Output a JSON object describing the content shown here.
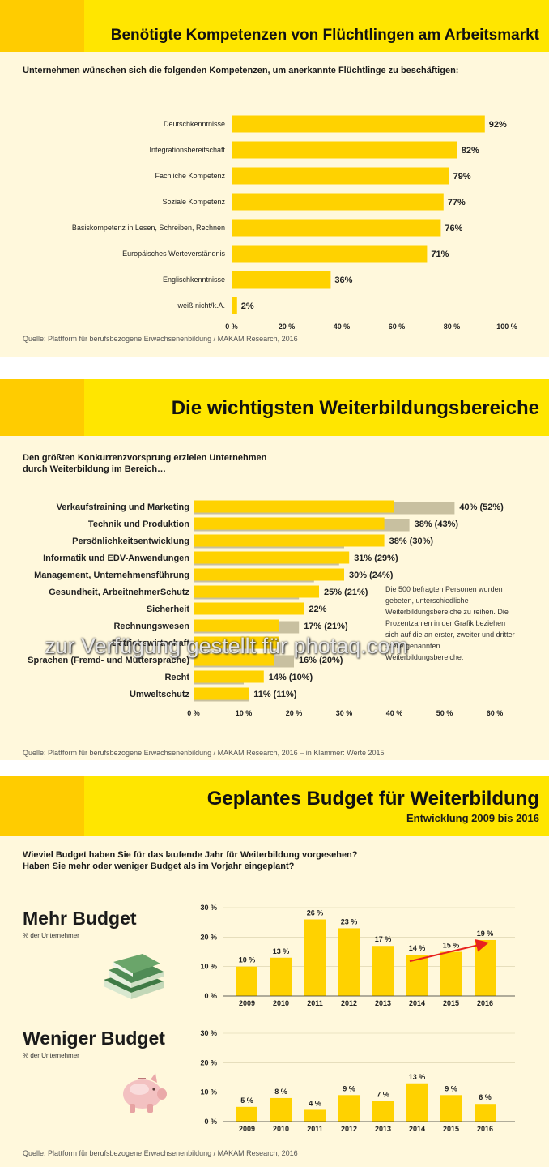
{
  "panel1": {
    "title": "Benötigte Kompetenzen von Flüchtlingen am Arbeitsmarkt",
    "intro": "Unternehmen wünschen sich die folgenden Kompetenzen, um anerkannte Flüchtlinge zu beschäftigen:",
    "source": "Quelle: Plattform für berufsbezogene Erwachsenenbildung / MAKAM Research, 2016"
  },
  "panel2": {
    "title": "Die wichtigsten Weiterbildungsbereiche",
    "intro_line1": "Den größten Konkurrenzvorsprung erzielen Unternehmen",
    "intro_line2": "durch Weiterbildung im Bereich…",
    "note": "Die 500 befragten Personen wurden gebeten, unterschiedliche Weiterbildungsbereiche zu reihen. Die Prozentzahlen in der Grafik beziehen sich auf die an erster, zweiter und dritter Stelle genannten Weiterbildungsbereiche.",
    "source": "Quelle: Plattform für berufsbezogene Erwachsenenbildung / MAKAM Research, 2016 – in Klammer: Werte 2015"
  },
  "panel3": {
    "title": "Geplantes Budget für Weiterbildung",
    "subtitle": "Entwicklung 2009 bis 2016",
    "intro_line1": "Wieviel Budget haben Sie für das laufende Jahr für Weiterbildung vorgesehen?",
    "intro_line2": "Haben Sie mehr oder weniger Budget als im Vorjahr eingeplant?",
    "more_title": "Mehr Budget",
    "more_sub": "% der Unternehmer",
    "less_title": "Weniger Budget",
    "less_sub": "% der Unternehmer",
    "source": "Quelle: Plattform für berufsbezogene Erwachsenenbildung / MAKAM Research, 2016"
  },
  "watermark": "zur Verfügung gestellt für photaq.com",
  "colors": {
    "bar": "#ffd200",
    "bar_2015": "#c8c0a0",
    "band": "#ffe600",
    "band_tab": "#ffcc00",
    "arrow": "#e8231e"
  },
  "chart_data": [
    {
      "type": "bar",
      "orientation": "horizontal",
      "categories": [
        "Deutschkenntnisse",
        "Integrationsbereitschaft",
        "Fachliche Kompetenz",
        "Soziale Kompetenz",
        "Basiskompetenz in Lesen, Schreiben, Rechnen",
        "Europäisches Werteverständnis",
        "Englischkenntnisse",
        "weiß nicht/k.A."
      ],
      "values": [
        92,
        82,
        79,
        77,
        76,
        71,
        36,
        2
      ],
      "value_labels": [
        "92%",
        "82%",
        "79%",
        "77%",
        "76%",
        "71%",
        "36%",
        "2%"
      ],
      "xlim": [
        0,
        100
      ],
      "ticks": [
        "0 %",
        "20 %",
        "40 %",
        "60 %",
        "80 %",
        "100 %"
      ]
    },
    {
      "type": "bar",
      "orientation": "horizontal",
      "categories": [
        "Verkaufstraining und Marketing",
        "Technik und Produktion",
        "Persönlichkeitsentwicklung",
        "Informatik und EDV-Anwendungen",
        "Management, Unternehmensführung",
        "Gesundheit, ArbeitnehmerSchutz",
        "Sicherheit",
        "Rechnungswesen",
        "Betriebswirtschaft",
        "Sprachen (Fremd- und Muttersprache)",
        "Recht",
        "Umweltschutz"
      ],
      "series": [
        {
          "name": "2016",
          "values": [
            40,
            38,
            38,
            31,
            30,
            25,
            22,
            17,
            17,
            16,
            14,
            11
          ]
        },
        {
          "name": "2015",
          "values": [
            52,
            43,
            30,
            29,
            24,
            21,
            null,
            21,
            null,
            20,
            10,
            11
          ]
        }
      ],
      "value_labels": [
        "40% (52%)",
        "38% (43%)",
        "38% (30%)",
        "31% (29%)",
        "30% (24%)",
        "25% (21%)",
        "22%",
        "17% (21%)",
        "",
        "16% (20%)",
        "14% (10%)",
        "11% (11%)"
      ],
      "xlim": [
        0,
        60
      ],
      "ticks": [
        "0 %",
        "10 %",
        "20 %",
        "30 %",
        "40 %",
        "50 %",
        "60 %"
      ]
    },
    {
      "type": "bar",
      "title": "Mehr Budget",
      "categories": [
        "2009",
        "2010",
        "2011",
        "2012",
        "2013",
        "2014",
        "2015",
        "2016"
      ],
      "values": [
        10,
        13,
        26,
        23,
        17,
        14,
        15,
        19
      ],
      "value_labels": [
        "10 %",
        "13 %",
        "26 %",
        "23 %",
        "17 %",
        "14 %",
        "15 %",
        "19 %"
      ],
      "ylim": [
        0,
        30
      ],
      "ticks": [
        "0 %",
        "10 %",
        "20 %",
        "30 %"
      ]
    },
    {
      "type": "bar",
      "title": "Weniger Budget",
      "categories": [
        "2009",
        "2010",
        "2011",
        "2012",
        "2013",
        "2014",
        "2015",
        "2016"
      ],
      "values": [
        5,
        8,
        4,
        9,
        7,
        13,
        9,
        6
      ],
      "value_labels": [
        "5 %",
        "8 %",
        "4 %",
        "9 %",
        "7 %",
        "13 %",
        "9 %",
        "6 %"
      ],
      "ylim": [
        0,
        30
      ],
      "ticks": [
        "0 %",
        "10 %",
        "20 %",
        "30 %"
      ]
    }
  ]
}
